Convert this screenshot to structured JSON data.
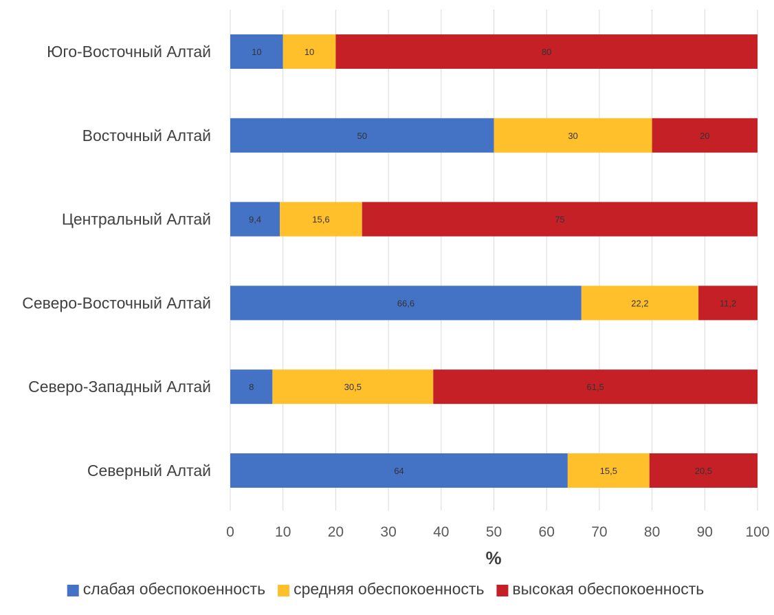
{
  "chart_data": {
    "type": "bar",
    "orientation": "horizontal",
    "stacked": true,
    "categories": [
      "Юго-Восточный Алтай",
      "Восточный Алтай",
      "Центральный Алтай",
      "Северо-Восточный Алтай",
      "Северо-Западный Алтай",
      "Северный Алтай"
    ],
    "series": [
      {
        "name": "слабая обеспокоенность",
        "color": "#4472c4",
        "values": [
          10,
          50,
          9.4,
          66.6,
          8,
          64
        ],
        "labels": [
          "10",
          "50",
          "9,4",
          "66,6",
          "8",
          "64"
        ]
      },
      {
        "name": "средняя обеспокоенность",
        "color": "#ffc02b",
        "values": [
          10,
          30,
          15.6,
          22.2,
          30.5,
          15.5
        ],
        "labels": [
          "10",
          "30",
          "15,6",
          "22,2",
          "30,5",
          "15,5"
        ]
      },
      {
        "name": "высокая обеспокоенность",
        "color": "#c42026",
        "values": [
          80,
          20,
          75,
          11.2,
          61.5,
          20.5
        ],
        "labels": [
          "80",
          "20",
          "75",
          "11,2",
          "61,5",
          "20,5"
        ]
      }
    ],
    "xlabel": "%",
    "xlim": [
      0,
      100
    ],
    "xticks": [
      "0",
      "10",
      "20",
      "30",
      "40",
      "50",
      "60",
      "70",
      "80",
      "90",
      "100"
    ],
    "grid": true,
    "legend": "bottom"
  }
}
